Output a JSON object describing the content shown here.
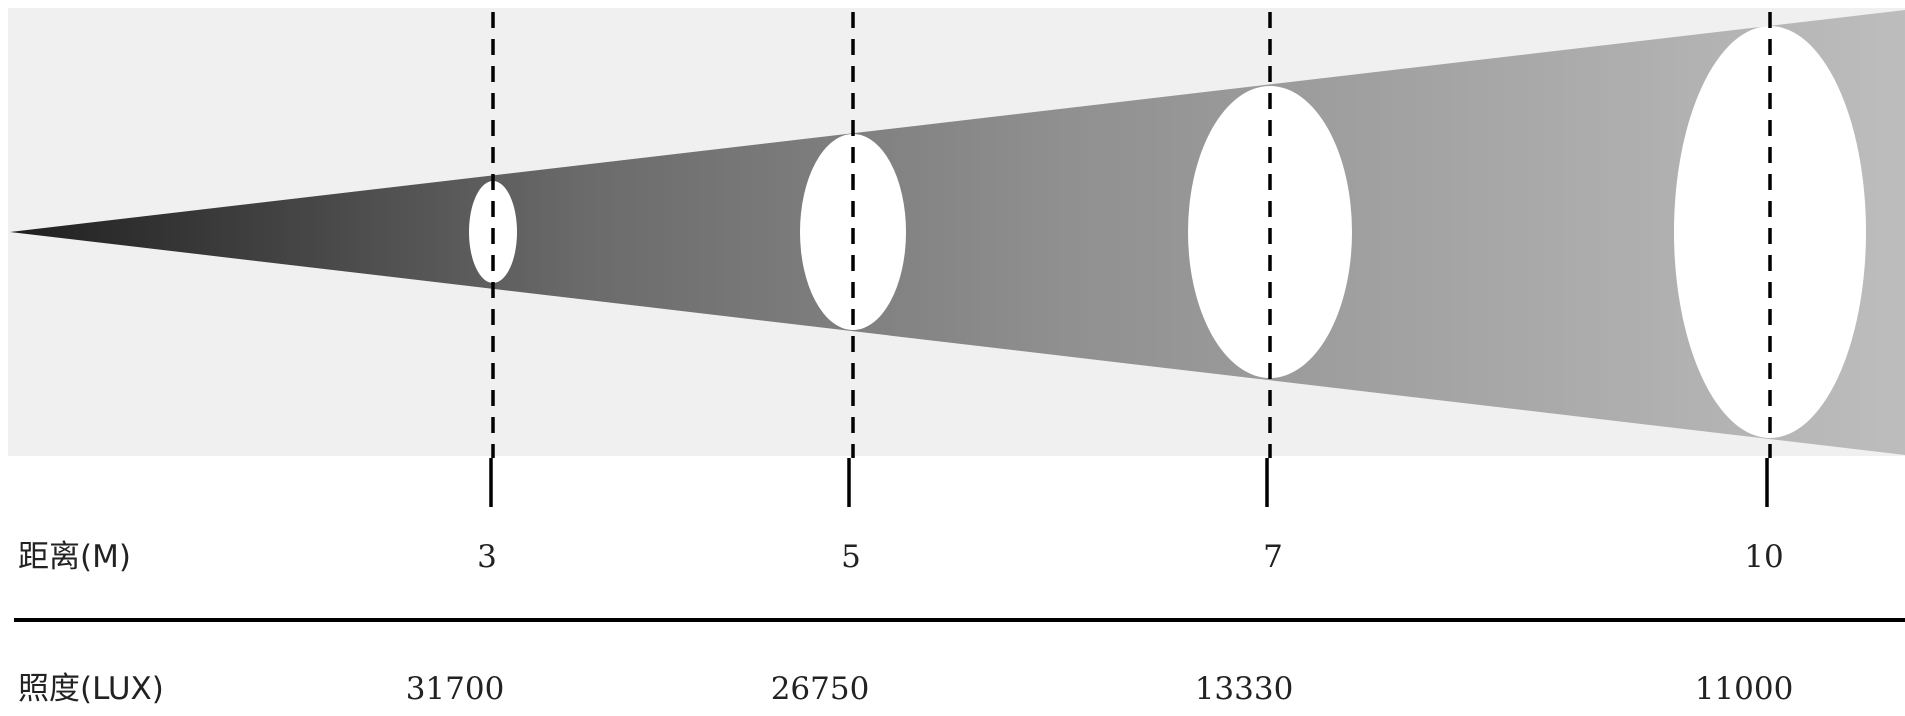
{
  "beam_diagram": {
    "distance_row_label": "距离(M)",
    "illuminance_row_label": "照度(LUX)",
    "distances": [
      "3",
      "5",
      "7",
      "10"
    ],
    "illuminance": [
      "31700",
      "26750",
      "13330",
      "11000"
    ],
    "colors": {
      "background_panel": "#f0f0f0",
      "beam_start": "#222222",
      "beam_end": "#bdbdbd",
      "spot": "#ffffff",
      "lines": "#000000"
    }
  }
}
